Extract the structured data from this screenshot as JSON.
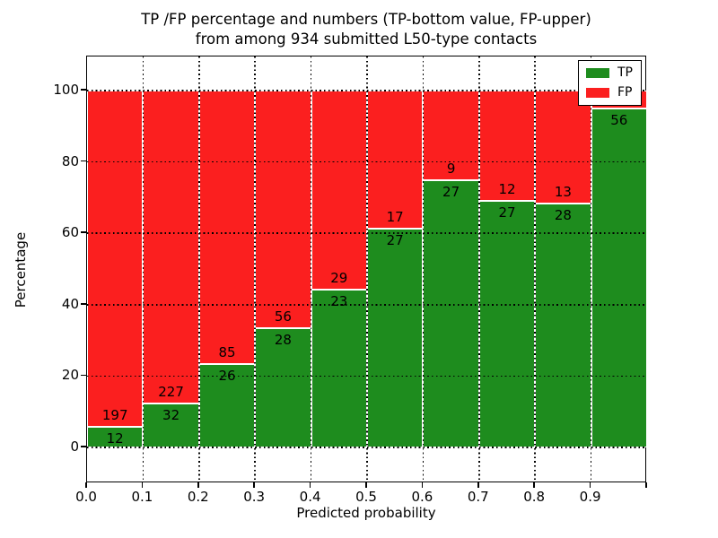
{
  "title": {
    "line1": "TP /FP percentage and numbers (TP-bottom value, FP-upper)",
    "line2": "from among 934 submitted L50-type contacts"
  },
  "axes": {
    "x_label": "Predicted probability",
    "y_label": "Percentage",
    "x_tick_labels": [
      "0.0",
      "0.1",
      "0.2",
      "0.3",
      "0.4",
      "0.5",
      "0.6",
      "0.7",
      "0.8",
      "0.9"
    ],
    "y_tick_labels": [
      "0",
      "20",
      "40",
      "60",
      "80",
      "100"
    ],
    "y_tick_values": [
      0,
      20,
      40,
      60,
      80,
      100
    ],
    "xlim": [
      0.0,
      1.0
    ],
    "ylim": [
      -10,
      110
    ],
    "grid_style": "dotted"
  },
  "legend": {
    "position": "upper-right",
    "items": [
      {
        "name": "tp",
        "label": "TP",
        "color": "#1e8c1e"
      },
      {
        "name": "fp",
        "label": "FP",
        "color": "#fb1f1f"
      }
    ]
  },
  "colors": {
    "tp": "#1e8c1e",
    "fp": "#fb1f1f",
    "bar_edge": "#ffffff",
    "grid": "#000000",
    "text": "#000000",
    "background": "#ffffff"
  },
  "chart_data": {
    "type": "bar",
    "stacked": true,
    "normalized_to": 100,
    "total_contacts": 934,
    "bin_edges": [
      0.0,
      0.1,
      0.2,
      0.3,
      0.4,
      0.5,
      0.6,
      0.7,
      0.8,
      0.9,
      1.0
    ],
    "categories": [
      "0.0-0.1",
      "0.1-0.2",
      "0.2-0.3",
      "0.3-0.4",
      "0.4-0.5",
      "0.5-0.6",
      "0.6-0.7",
      "0.7-0.8",
      "0.8-0.9",
      "0.9-1.0"
    ],
    "series": [
      {
        "name": "TP",
        "counts": [
          12,
          32,
          26,
          28,
          23,
          27,
          27,
          27,
          28,
          56
        ],
        "pct": [
          5.7,
          12.4,
          23.4,
          33.3,
          44.2,
          61.4,
          75.0,
          69.2,
          68.3,
          94.9
        ]
      },
      {
        "name": "FP",
        "counts": [
          197,
          227,
          85,
          56,
          29,
          17,
          9,
          12,
          13,
          null
        ],
        "pct": [
          94.3,
          87.6,
          76.6,
          66.7,
          55.8,
          38.6,
          25.0,
          30.8,
          31.7,
          5.1
        ]
      }
    ]
  }
}
